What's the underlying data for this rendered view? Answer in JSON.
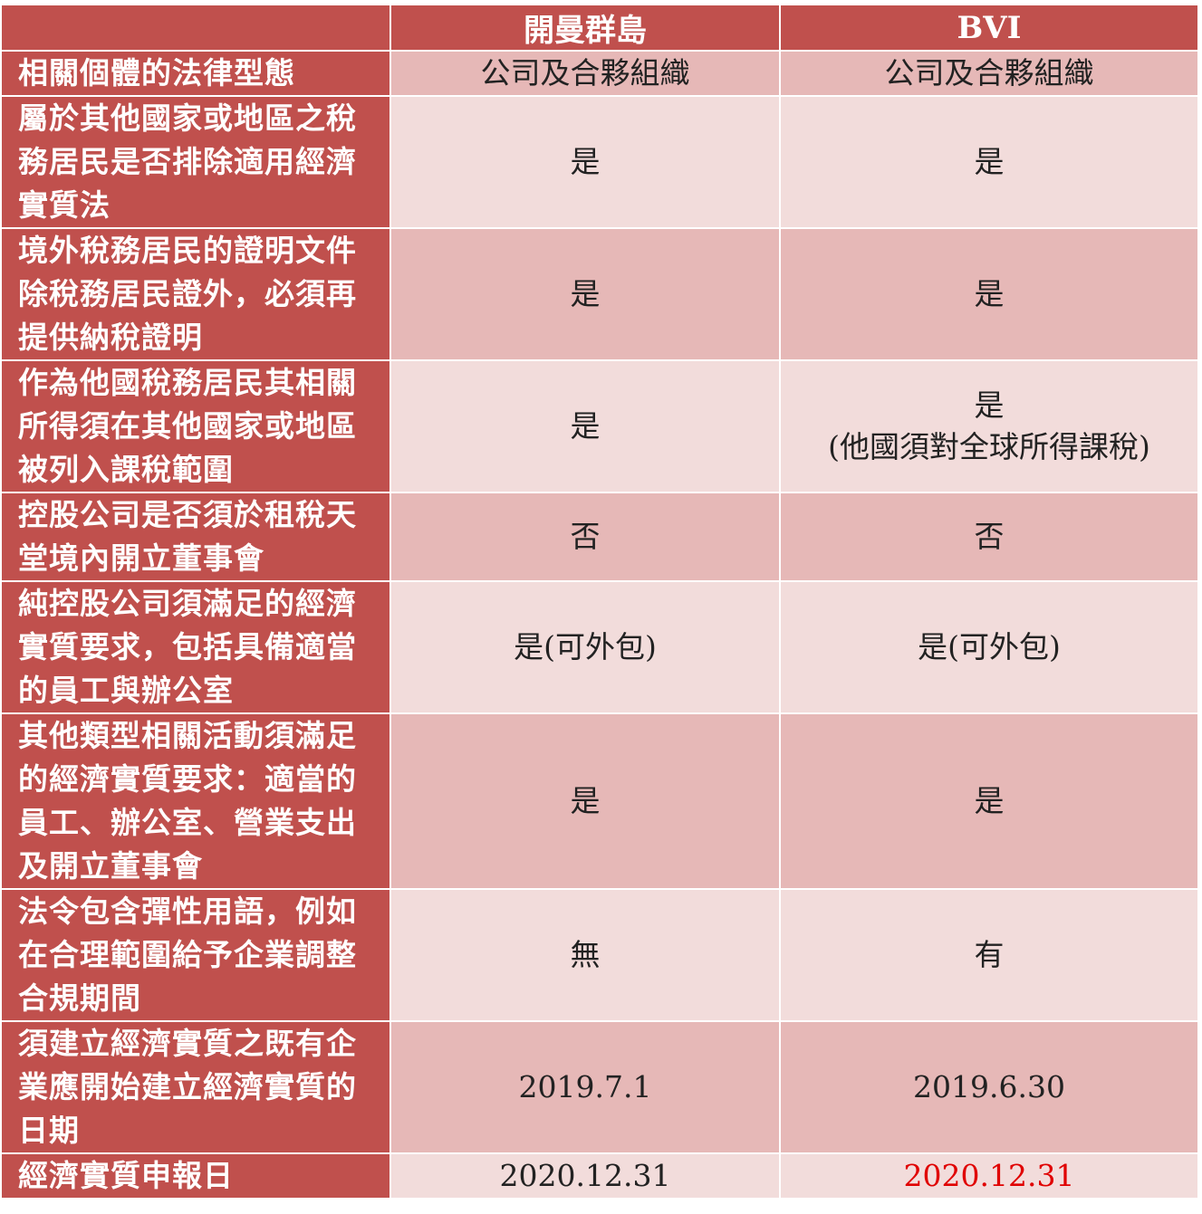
{
  "table": {
    "columns": [
      "開曼群島",
      "BVI"
    ],
    "rows": [
      [
        "相關個體的法律型態",
        "公司及合夥組織",
        "公司及合夥組織"
      ],
      [
        "屬於其他國家或地區之稅務居民是否排除適用經濟實質法",
        "是",
        "是"
      ],
      [
        "境外稅務居民的證明文件除稅務居民證外，必須再提供納稅證明",
        "是",
        "是"
      ],
      [
        "作為他國稅務居民其相關所得須在其他國家或地區被列入課稅範圍",
        "是",
        "是\n(他國須對全球所得課稅)"
      ],
      [
        "控股公司是否須於租稅天堂境內開立董事會",
        "否",
        "否"
      ],
      [
        "純控股公司須滿足的經濟實質要求，包括具備適當的員工與辦公室",
        "是(可外包)",
        "是(可外包)"
      ],
      [
        "其他類型相關活動須滿足的經濟實質要求：適當的員工、辦公室、營業支出及開立董事會",
        "是",
        "是"
      ],
      [
        "法令包含彈性用語，例如在合理範圍給予企業調整合規期間",
        "無",
        "有"
      ],
      [
        "須建立經濟實質之既有企業應開始建立經濟實質的日期",
        "2019.7.1",
        "2019.6.30"
      ],
      [
        "經濟實質申報日",
        "2020.12.31",
        "2020.12.31"
      ]
    ]
  }
}
